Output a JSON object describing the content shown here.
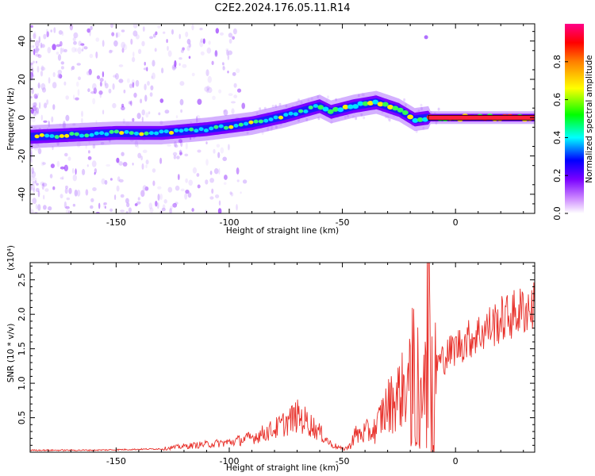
{
  "title": "C2E2.2024.176.05.11.R14",
  "chart_data": [
    {
      "type": "heatmap",
      "name": "spectrogram",
      "xlabel": "Height of straight line (km)",
      "ylabel": "Frequency (Hz)",
      "xlim": [
        -188,
        35
      ],
      "ylim": [
        -50,
        49
      ],
      "xticks": [
        "-150",
        "-100",
        "-50",
        "0"
      ],
      "xtick_values": [
        -150,
        -100,
        -50,
        0
      ],
      "yticks": [
        "40",
        "20",
        "0",
        "-20",
        "-40"
      ],
      "ytick_values": [
        40,
        20,
        0,
        -20,
        -40
      ],
      "ridge": {
        "x": [
          -188,
          -170,
          -150,
          -130,
          -110,
          -90,
          -75,
          -60,
          -55,
          -45,
          -35,
          -30,
          -25,
          -18,
          -12,
          0,
          33
        ],
        "y": [
          -10,
          -9,
          -8,
          -8,
          -6,
          -3,
          1,
          6,
          3,
          6,
          8,
          6,
          4,
          -1,
          0,
          0,
          0
        ]
      },
      "colorbar": {
        "label": "Normalized spectral amplitude",
        "range": [
          0,
          1
        ],
        "ticks": [
          "0.0",
          "0.2",
          "0.4",
          "0.6",
          "0.8"
        ],
        "tick_values": [
          0.0,
          0.2,
          0.4,
          0.6,
          0.8
        ]
      }
    },
    {
      "type": "line",
      "name": "snr",
      "xlabel": "Height of straight line (km)",
      "ylabel": "SNR (10 * v/v)",
      "multiplier": "(x10⁴)",
      "xlim": [
        -188,
        35
      ],
      "ylim": [
        0,
        2.75
      ],
      "xticks": [
        "-150",
        "-100",
        "-50",
        "0"
      ],
      "xtick_values": [
        -150,
        -100,
        -50,
        0
      ],
      "yticks": [
        "0.5",
        "1.0",
        "1.5",
        "2.0",
        "2.5"
      ],
      "ytick_values": [
        0.5,
        1.0,
        1.5,
        2.0,
        2.5
      ],
      "line_color": "#e8302a",
      "envelope": {
        "x": [
          -188,
          -160,
          -130,
          -120,
          -110,
          -100,
          -90,
          -80,
          -75,
          -70,
          -65,
          -60,
          -55,
          -50,
          -47,
          -45,
          -40,
          -35,
          -33,
          -30,
          -25,
          -20,
          -15,
          -12,
          -10,
          -5,
          0,
          10,
          20,
          30,
          35
        ],
        "y": [
          0.03,
          0.03,
          0.05,
          0.09,
          0.12,
          0.15,
          0.22,
          0.35,
          0.45,
          0.55,
          0.45,
          0.3,
          0.12,
          0.05,
          0.08,
          0.25,
          0.3,
          0.35,
          0.55,
          0.7,
          0.9,
          1.1,
          1.15,
          1.2,
          1.25,
          1.4,
          1.55,
          1.75,
          1.95,
          2.1,
          2.15
        ]
      }
    }
  ]
}
